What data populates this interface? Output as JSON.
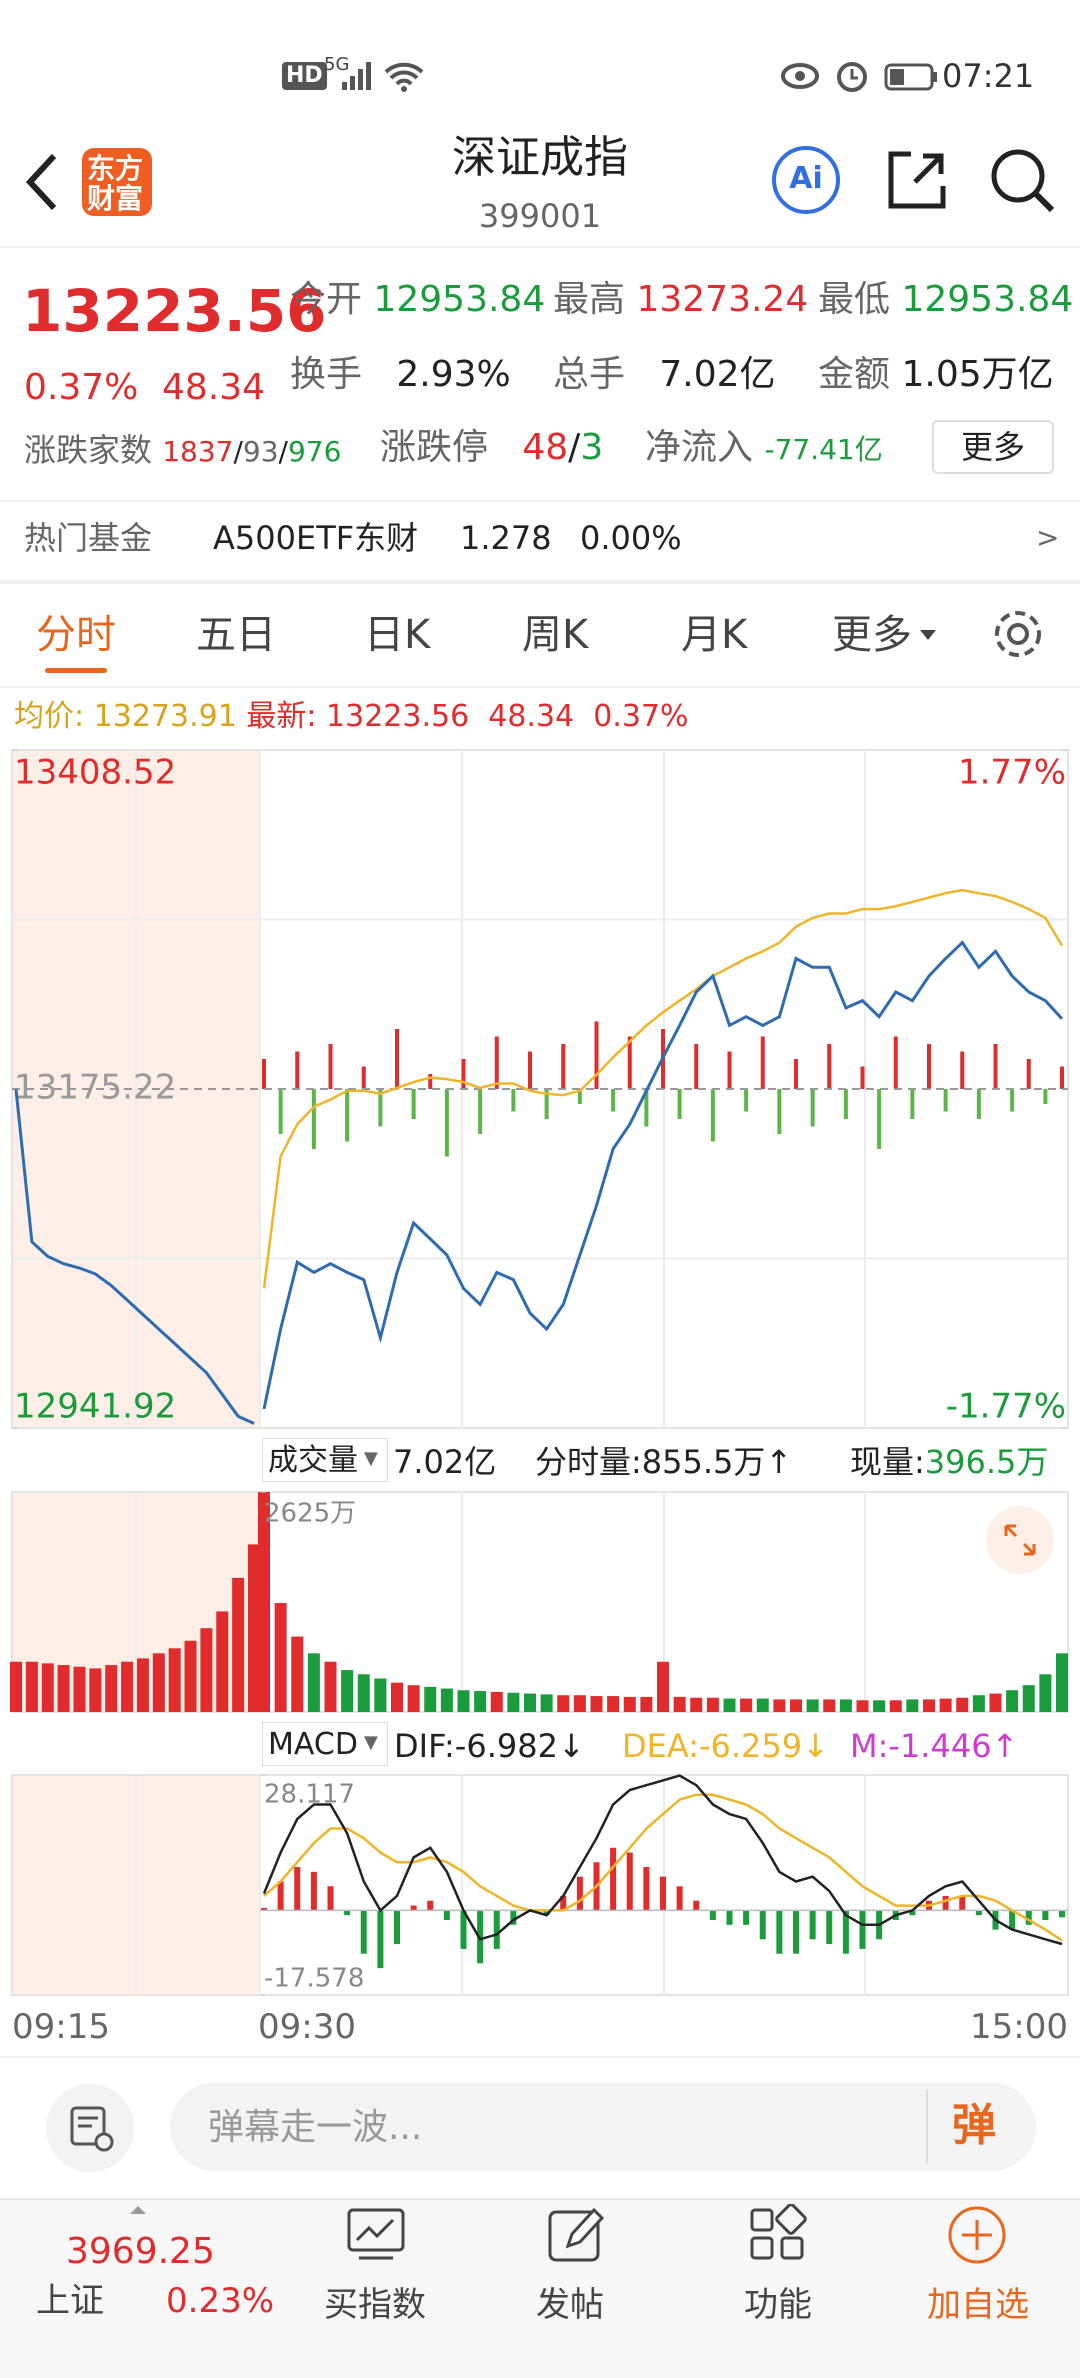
{
  "status_bar": {
    "hd": "HD",
    "network": "5G",
    "time": "07:21"
  },
  "header": {
    "logo_top": "东方",
    "logo_bottom": "财富",
    "title": "深证成指",
    "code": "399001",
    "ai": "Ai"
  },
  "quote": {
    "price": "13223.56",
    "change_pct": "0.37%",
    "change": "48.34",
    "stats": [
      {
        "label": "今开",
        "value": "12953.84"
      },
      {
        "label": "最高",
        "value": "13273.24"
      },
      {
        "label": "最低",
        "value": "12953.84"
      },
      {
        "label": "换手",
        "value": "2.93%"
      },
      {
        "label": "总手",
        "value": "7.02亿"
      },
      {
        "label": "金额",
        "value": "1.05万亿"
      }
    ],
    "breadth": {
      "label": "涨跌家数",
      "up": "1837",
      "flat": "93",
      "down": "976"
    },
    "limit": {
      "label": "涨跌停",
      "up": "48",
      "down": "3"
    },
    "net_inflow": {
      "label": "净流入",
      "value": "-77.41亿"
    },
    "more": "更多"
  },
  "hot_fund": {
    "label": "热门基金",
    "name": "A500ETF东财",
    "price": "1.278",
    "change": "0.00%",
    "arrow": ">"
  },
  "tabs": [
    "分时",
    "五日",
    "日K",
    "周K",
    "月K",
    "更多"
  ],
  "info_line": {
    "avg_label": "均价:",
    "avg": "13273.91",
    "latest_label": "最新:",
    "latest": "13223.56",
    "change": "48.34",
    "change_pct": "0.37%"
  },
  "price_chart": {
    "ylim": [
      12941.92,
      13408.52
    ],
    "yticks": [
      13408.52,
      13175.22,
      12941.92
    ],
    "y2lim": [
      -1.77,
      1.77
    ],
    "y2ticks": [
      {
        "value": 1.77,
        "label": "1.77%"
      },
      {
        "value": -1.77,
        "label": "-1.77%"
      }
    ],
    "price_color": "#2e6bb0",
    "avg_color": "#f0b429",
    "premarket_price": [
      13175,
      13070,
      13060,
      13055,
      13052,
      13048,
      13040,
      13030,
      13020,
      13010,
      13000,
      12990,
      12980,
      12965,
      12950,
      12945
    ],
    "price": [
      12955,
      13010,
      13056,
      13049,
      13055,
      13049,
      13044,
      13004,
      13049,
      13083,
      13072,
      13061,
      13038,
      13027,
      13049,
      13044,
      13021,
      13010,
      13027,
      13061,
      13095,
      13134,
      13151,
      13174,
      13197,
      13219,
      13242,
      13253,
      13219,
      13225,
      13219,
      13225,
      13265,
      13259,
      13259,
      13231,
      13236,
      13225,
      13242,
      13236,
      13253,
      13265,
      13276,
      13259,
      13270,
      13253,
      13242,
      13236,
      13223.56
    ],
    "avg": [
      13038,
      13129,
      13151,
      13163,
      13168,
      13174,
      13174,
      13172,
      13176,
      13180,
      13183,
      13182,
      13180,
      13176,
      13179,
      13179,
      13174,
      13172,
      13171,
      13174,
      13185,
      13197,
      13208,
      13219,
      13228,
      13236,
      13244,
      13253,
      13259,
      13265,
      13270,
      13276,
      13287,
      13293,
      13296,
      13296,
      13299,
      13299,
      13301,
      13304,
      13307,
      13310,
      13312,
      13310,
      13308,
      13304,
      13299,
      13293,
      13273.91
    ],
    "flow": [
      20,
      -30,
      25,
      -40,
      30,
      -35,
      15,
      -25,
      40,
      -20,
      10,
      -45,
      20,
      -30,
      35,
      -15,
      25,
      -20,
      30,
      -10,
      45,
      -15,
      35,
      -25,
      40,
      -20,
      30,
      -35,
      25,
      -15,
      35,
      -30,
      20,
      -25,
      30,
      -20,
      15,
      -40,
      35,
      -20,
      30,
      -15,
      25,
      -20,
      30,
      -15,
      20,
      -10,
      15
    ]
  },
  "volume_header": {
    "selector": "成交量",
    "total": "7.02亿",
    "minute_label": "分时量:855.5万",
    "arrow": "↑",
    "current_label": "现量:",
    "current": "396.5万"
  },
  "volume_chart": {
    "ylim": [
      0,
      2625
    ],
    "yticks": [
      {
        "value": 2625,
        "label": "2625万"
      }
    ],
    "premarket_volume": [
      600,
      600,
      580,
      560,
      540,
      520,
      560,
      600,
      640,
      700,
      760,
      850,
      1000,
      1200,
      1600,
      2000
    ],
    "volume": [
      2625,
      1300,
      900,
      700,
      600,
      500,
      450,
      400,
      350,
      320,
      300,
      280,
      260,
      250,
      240,
      230,
      220,
      210,
      200,
      200,
      190,
      190,
      180,
      180,
      600,
      180,
      170,
      170,
      160,
      160,
      160,
      150,
      150,
      150,
      150,
      150,
      140,
      140,
      140,
      150,
      150,
      160,
      170,
      200,
      220,
      260,
      320,
      450,
      700
    ]
  },
  "macd_header": {
    "selector": "MACD",
    "dif": "DIF:-6.982",
    "dif_arrow": "↓",
    "dea": "DEA:-6.259",
    "dea_arrow": "↓",
    "m": "M:-1.446",
    "m_arrow": "↑"
  },
  "macd_chart": {
    "ylim": [
      -17.578,
      28.117
    ],
    "yticks": [
      28.117,
      -17.578
    ],
    "dif": [
      3.5,
      12,
      19,
      22,
      22,
      16,
      6,
      0,
      3,
      11,
      13,
      8,
      0,
      -6,
      -5,
      -2,
      0,
      -1,
      3,
      9,
      15,
      22,
      25,
      26,
      27,
      28,
      26,
      22,
      20,
      19,
      14,
      8,
      6,
      7,
      4,
      -1,
      -3,
      -3,
      -1,
      0,
      3,
      5,
      6,
      2,
      -2,
      -4,
      -5,
      -6,
      -6.982
    ],
    "dea": [
      3,
      6,
      10,
      14,
      17,
      17,
      15,
      12,
      10,
      10,
      11,
      10,
      8,
      5,
      3,
      1,
      0,
      0,
      0,
      2,
      5,
      9,
      13,
      17,
      20,
      23,
      24,
      24,
      23,
      22,
      20,
      17,
      15,
      13,
      11,
      8,
      5,
      3,
      1,
      1,
      1,
      2,
      3,
      3,
      2,
      0,
      -2,
      -4,
      -6.259
    ],
    "m": [
      0.5,
      6,
      9,
      8,
      5,
      -1,
      -9,
      -12,
      -7,
      1,
      2,
      -2,
      -8,
      -11,
      -8,
      -3,
      0,
      -1,
      3,
      7,
      10,
      13,
      12,
      9,
      7,
      5,
      2,
      -2,
      -3,
      -3,
      -6,
      -9,
      -9,
      -6,
      -7,
      -9,
      -8,
      -6,
      -2,
      -1,
      2,
      3,
      3,
      -1,
      -4,
      -4,
      -3,
      -2,
      -1.446
    ]
  },
  "time_axis": [
    "09:15",
    "09:30",
    "15:00"
  ],
  "comment_bar": {
    "placeholder": "弹幕走一波...",
    "button": "弹"
  },
  "bottom_nav": {
    "index": {
      "value": "3969.25",
      "name": "上证",
      "change": "0.23%"
    },
    "items": [
      "买指数",
      "发帖",
      "功能",
      "加自选"
    ]
  }
}
